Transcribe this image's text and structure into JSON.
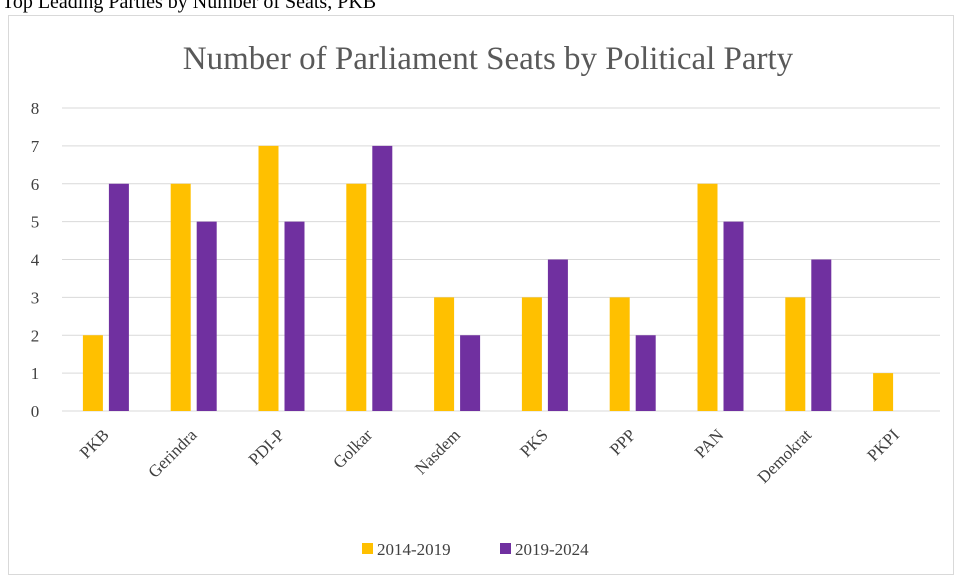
{
  "caption": "Top Leading Parties by Number of Seats, PKB",
  "chart_data": {
    "type": "bar",
    "title": "Number of Parliament Seats by Political Party",
    "xlabel": "",
    "ylabel": "",
    "categories": [
      "PKB",
      "Gerindra",
      "PDI-P",
      "Golkar",
      "Nasdem",
      "PKS",
      "PPP",
      "PAN",
      "Demokrat",
      "PKPI"
    ],
    "series": [
      {
        "name": "2014-2019",
        "color": "#FFC000",
        "values": [
          2,
          6,
          7,
          6,
          3,
          3,
          3,
          6,
          3,
          1
        ]
      },
      {
        "name": "2019-2024",
        "color": "#7030A0",
        "values": [
          6,
          5,
          5,
          7,
          2,
          4,
          2,
          5,
          4,
          0
        ]
      }
    ],
    "ylim": [
      0,
      8
    ],
    "yticks": [
      "0",
      "1",
      "2",
      "3",
      "4",
      "5",
      "6",
      "7",
      "8"
    ],
    "grid": true,
    "legend": "bottom-center"
  }
}
